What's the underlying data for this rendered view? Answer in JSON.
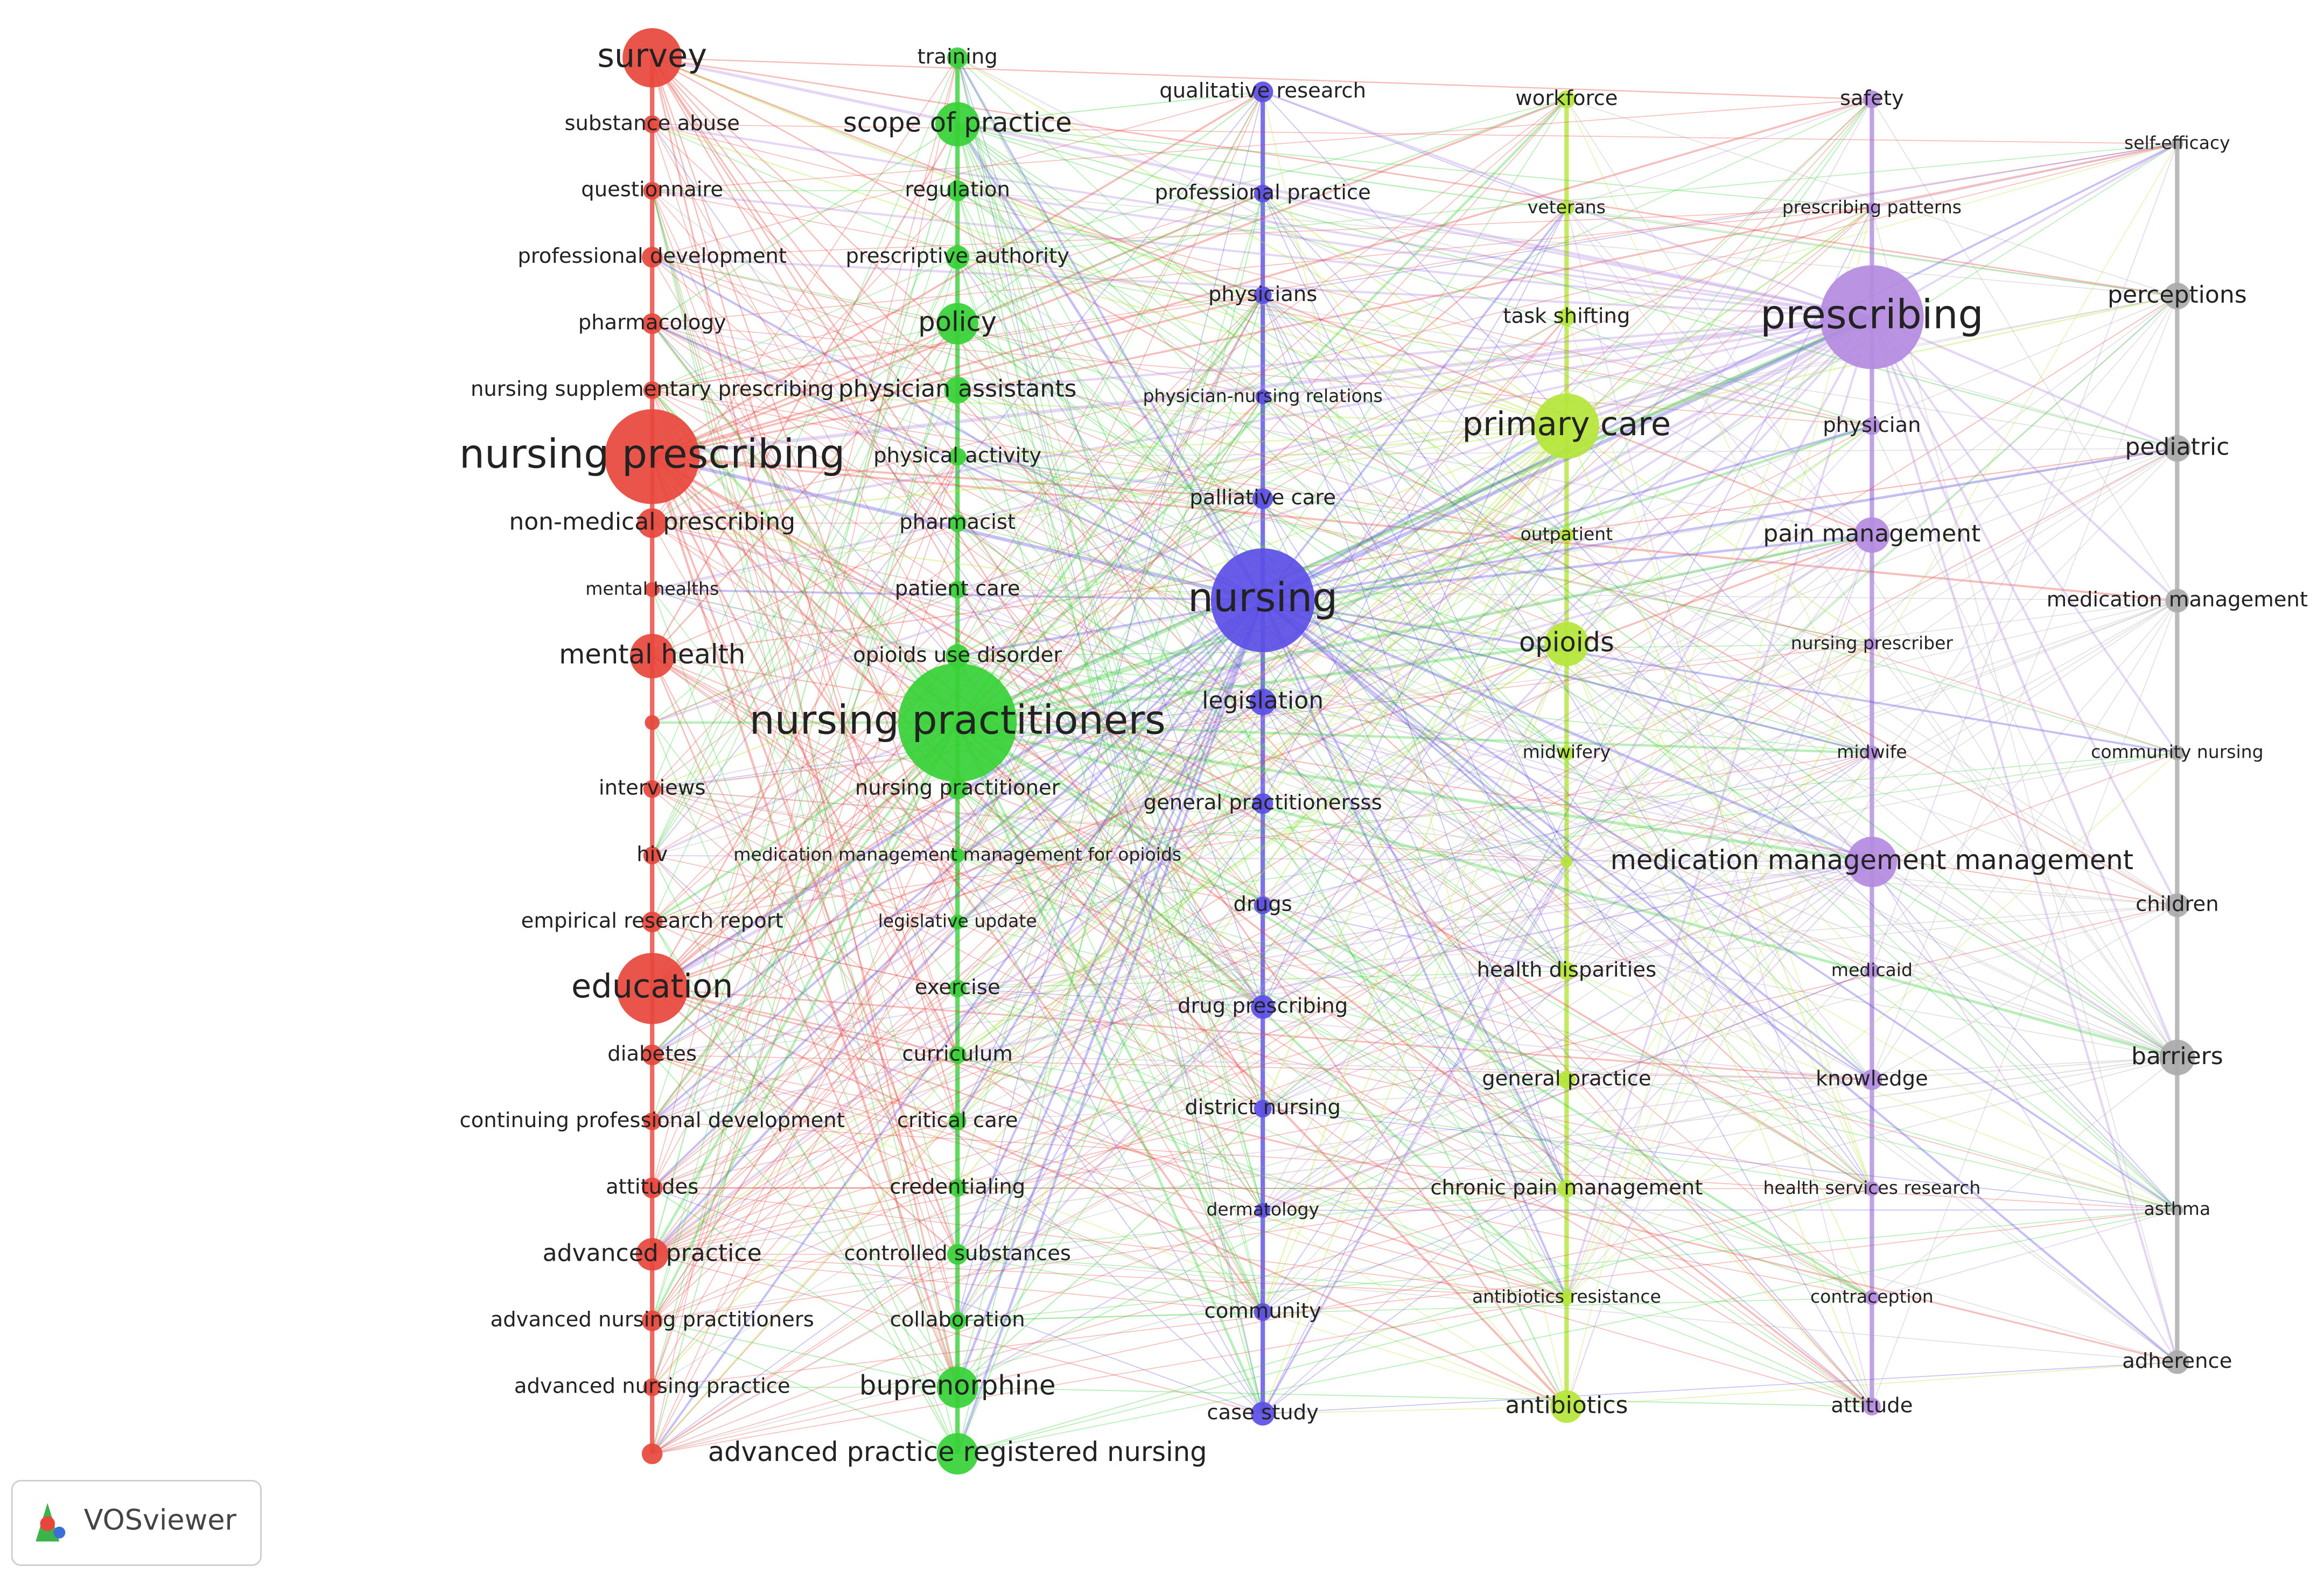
{
  "clusters": [
    {
      "color": "#e8463c",
      "nodes": [
        "survey",
        "substance abuse",
        "questionnaire",
        "professional development",
        "pharmacology",
        "nursing supplementary prescribing",
        "nursing prescribing",
        "non-medical prescribing",
        "mental healths",
        "mental health",
        "interviews",
        "hiv",
        "empirical research report",
        "education",
        "diabetes",
        "continuing professional development",
        "attitudes",
        "advanced practice",
        "advanced nursing practitioners",
        "advanced nursing practice"
      ]
    },
    {
      "color": "#36d136",
      "nodes": [
        "training",
        "scope of practice",
        "regulation",
        "prescriptive authority",
        "policy",
        "physician assistants",
        "physical activity",
        "pharmacist",
        "patient care",
        "opioids use disorder",
        "nursing practitioners",
        "nursing practitioner",
        "medication management management for opioids",
        "legislative update",
        "exercise",
        "curriculum",
        "critical care",
        "credentialing",
        "controlled substances",
        "collaboration",
        "buprenorphine",
        "advanced practice registered nursing"
      ]
    },
    {
      "color": "#5b4ee6",
      "nodes": [
        "qualitative research",
        "professional practice",
        "physicians",
        "physician-nursing relations",
        "palliative care",
        "nursing",
        "legislation",
        "general practitionersss",
        "drugs",
        "drug prescribing",
        "district nursing",
        "dermatology",
        "community",
        "case study"
      ]
    },
    {
      "color": "#b5e639",
      "nodes": [
        "workforce",
        "veterans",
        "task shifting",
        "primary care",
        "outpatient",
        "opioids",
        "midwifery",
        "health disparities",
        "general practice",
        "chronic pain management",
        "antibiotics resistance",
        "antibiotics"
      ]
    },
    {
      "color": "#b48be0",
      "nodes": [
        "safety",
        "prescribing patterns",
        "prescribing",
        "physician",
        "pain management",
        "nursing prescriber",
        "midwife",
        "medication management management",
        "medicaid",
        "knowledge",
        "health services research",
        "contraception",
        "attitude"
      ]
    },
    {
      "color": "#aaaaaa",
      "nodes": [
        "self-efficacy",
        "perceptions",
        "pediatric",
        "medication management",
        "community nursing",
        "children",
        "barriers",
        "asthma",
        "adherence"
      ]
    }
  ],
  "logo": {
    "text": "VOSviewer"
  }
}
